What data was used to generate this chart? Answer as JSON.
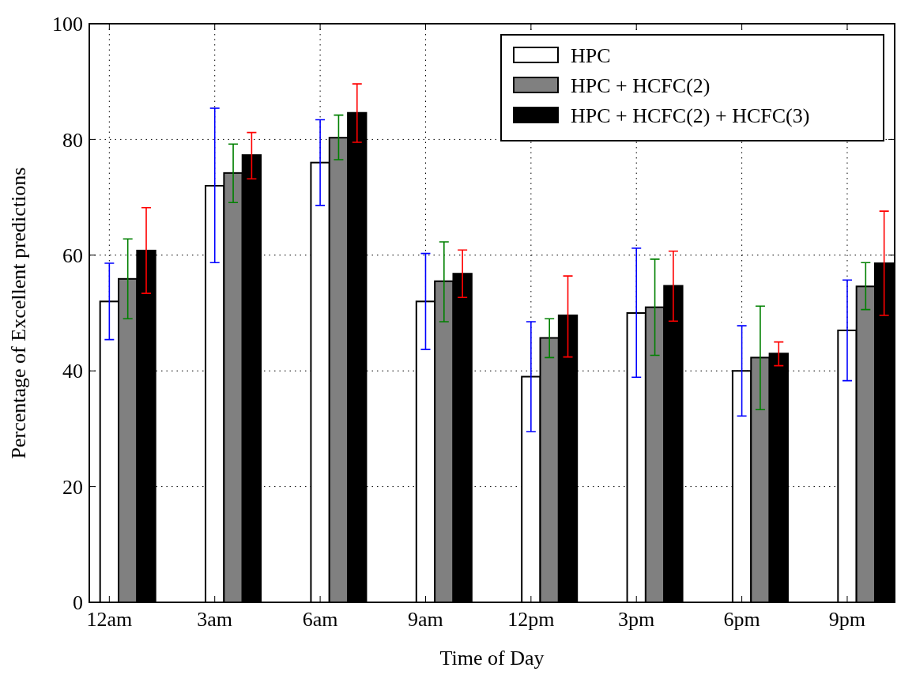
{
  "chart_data": {
    "type": "bar",
    "xlabel": "Time of Day",
    "ylabel": "Percentage of Excellent predictions",
    "categories": [
      "12am",
      "3am",
      "6am",
      "9am",
      "12pm",
      "3pm",
      "6pm",
      "9pm"
    ],
    "ylim": [
      0,
      100
    ],
    "yticks": [
      0,
      20,
      40,
      60,
      80,
      100
    ],
    "grid": true,
    "legend": "top right",
    "series": [
      {
        "name": "HPC",
        "color": "#ffffff",
        "values": [
          52,
          72,
          76,
          52,
          39,
          50,
          40,
          47
        ],
        "errors": [
          [
            45.4,
            58.6
          ],
          [
            58.7,
            85.4
          ],
          [
            68.6,
            83.4
          ],
          [
            43.7,
            60.3
          ],
          [
            29.5,
            48.5
          ],
          [
            38.9,
            61.2
          ],
          [
            32.2,
            47.8
          ],
          [
            38.3,
            55.7
          ]
        ]
      },
      {
        "name": "HPC + HCFC(2)",
        "color": "#808080",
        "values": [
          55.9,
          74.2,
          80.3,
          55.5,
          45.7,
          51,
          42.3,
          54.6
        ],
        "errors": [
          [
            49,
            62.8
          ],
          [
            69.1,
            79.2
          ],
          [
            76.5,
            84.2
          ],
          [
            48.5,
            62.3
          ],
          [
            42.3,
            49
          ],
          [
            42.7,
            59.3
          ],
          [
            33.3,
            51.2
          ],
          [
            50.6,
            58.7
          ]
        ]
      },
      {
        "name": "HPC + HCFC(2) + HCFC(3)",
        "color": "#000000",
        "values": [
          60.8,
          77.3,
          84.6,
          56.8,
          49.6,
          54.7,
          43,
          58.6
        ],
        "errors": [
          [
            53.4,
            68.2
          ],
          [
            73.2,
            81.2
          ],
          [
            79.5,
            89.6
          ],
          [
            52.7,
            60.9
          ],
          [
            42.4,
            56.4
          ],
          [
            48.6,
            60.7
          ],
          [
            40.9,
            45
          ],
          [
            49.6,
            67.6
          ]
        ]
      }
    ]
  }
}
